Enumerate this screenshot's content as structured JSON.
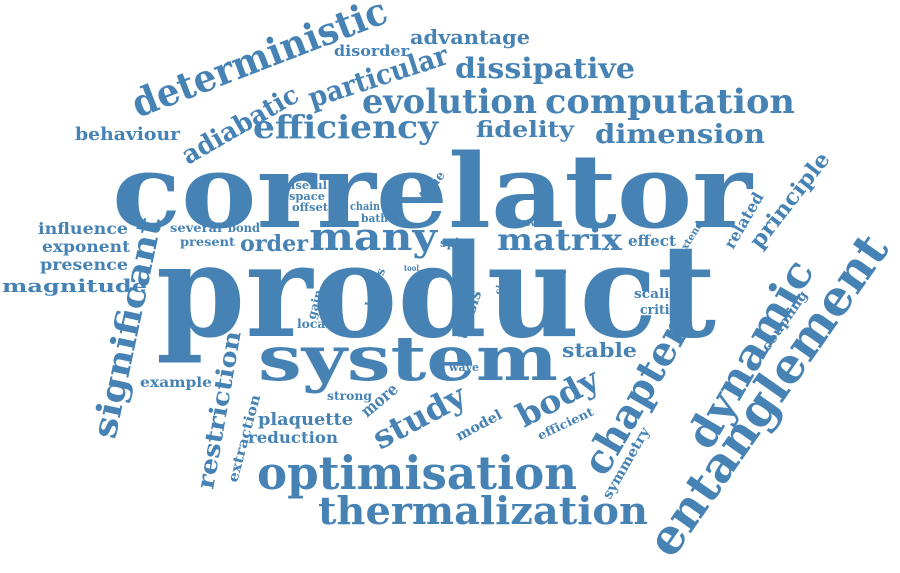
{
  "word_cloud": {
    "color": "#4682b4",
    "words": {
      "correlator": "correlator",
      "product": "product",
      "system": "system",
      "optimisation": "optimisation",
      "thermalization": "thermalization",
      "entanglement": "entanglement",
      "dynamic": "dynamic",
      "chapter": "chapter",
      "significant": "significant",
      "deterministic": "deterministic",
      "computation": "computation",
      "evolution": "evolution",
      "efficiency": "efficiency",
      "dissipative": "dissipative",
      "particular": "particular",
      "adiabatic": "adiabatic",
      "dimension": "dimension",
      "many": "many",
      "matrix": "matrix",
      "body": "body",
      "study": "study",
      "principle": "principle",
      "restriction": "restriction",
      "advantage": "advantage",
      "disorder": "disorder",
      "behaviour": "behaviour",
      "fidelity": "fidelity",
      "influence": "influence",
      "exponent": "exponent",
      "presence": "presence",
      "magnitude": "magnitude",
      "order": "order",
      "several": "several",
      "bond": "bond",
      "present": "present",
      "useful": "useful",
      "space": "space",
      "offset": "offset",
      "chain": "chain",
      "bath": "bath",
      "time": "time",
      "spin": "spin",
      "effect": "effect",
      "show": "show",
      "related": "related",
      "extend": "extend",
      "scaling": "scaling",
      "critical": "critical",
      "stable": "stable",
      "coupling": "coupling",
      "thesis": "thesis",
      "gain": "gain",
      "local": "local",
      "losses": "losses",
      "tool": "tool",
      "class": "class",
      "trade": "trade",
      "phase": "phase",
      "wave": "wave",
      "strong": "strong",
      "more": "more",
      "model": "model",
      "efficient": "efficient",
      "example": "example",
      "plaquette": "plaquette",
      "reduction": "reduction",
      "extraction": "extraction",
      "symmetry": "symmetry"
    }
  }
}
